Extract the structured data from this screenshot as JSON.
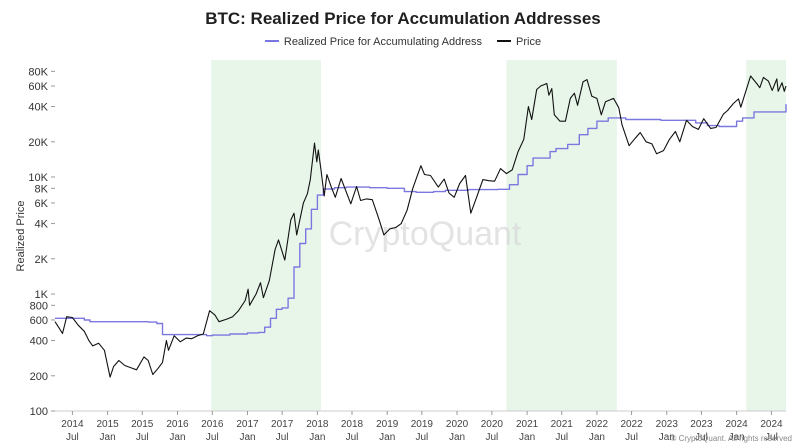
{
  "chart_data": {
    "type": "line",
    "title": "BTC: Realized Price for Accumulation Addresses",
    "ylabel": "Realized Price",
    "yscale": "log",
    "ylim": [
      100,
      100000
    ],
    "xlim": [
      "2014-04-01",
      "2024-09-15"
    ],
    "grid": false,
    "legend_position": "top-center",
    "watermark": "CryptoQuant",
    "copyright": "© CryptoQuant. All rights reserved",
    "y_ticks": [
      {
        "value": 100,
        "label": "100"
      },
      {
        "value": 200,
        "label": "200"
      },
      {
        "value": 400,
        "label": "400"
      },
      {
        "value": 600,
        "label": "600"
      },
      {
        "value": 800,
        "label": "800"
      },
      {
        "value": 1000,
        "label": "1K"
      },
      {
        "value": 2000,
        "label": "2K"
      },
      {
        "value": 4000,
        "label": "4K"
      },
      {
        "value": 6000,
        "label": "6K"
      },
      {
        "value": 8000,
        "label": "8K"
      },
      {
        "value": 10000,
        "label": "10K"
      },
      {
        "value": 20000,
        "label": "20K"
      },
      {
        "value": 40000,
        "label": "40K"
      },
      {
        "value": 60000,
        "label": "60K"
      },
      {
        "value": 80000,
        "label": "80K"
      }
    ],
    "x_ticks": [
      {
        "date": "2014-07-01",
        "line1": "2014",
        "line2": "Jul"
      },
      {
        "date": "2015-01-01",
        "line1": "2015",
        "line2": "Jan"
      },
      {
        "date": "2015-07-01",
        "line1": "2015",
        "line2": "Jul"
      },
      {
        "date": "2016-01-01",
        "line1": "2016",
        "line2": "Jan"
      },
      {
        "date": "2016-07-01",
        "line1": "2016",
        "line2": "Jul"
      },
      {
        "date": "2017-01-01",
        "line1": "2017",
        "line2": "Jan"
      },
      {
        "date": "2017-07-01",
        "line1": "2017",
        "line2": "Jul"
      },
      {
        "date": "2018-01-01",
        "line1": "2018",
        "line2": "Jan"
      },
      {
        "date": "2018-07-01",
        "line1": "2018",
        "line2": "Jul"
      },
      {
        "date": "2019-01-01",
        "line1": "2019",
        "line2": "Jan"
      },
      {
        "date": "2019-07-01",
        "line1": "2019",
        "line2": "Jul"
      },
      {
        "date": "2020-01-01",
        "line1": "2020",
        "line2": "Jan"
      },
      {
        "date": "2020-07-01",
        "line1": "2020",
        "line2": "Jul"
      },
      {
        "date": "2021-01-01",
        "line1": "2021",
        "line2": "Jan"
      },
      {
        "date": "2021-07-01",
        "line1": "2021",
        "line2": "Jul"
      },
      {
        "date": "2022-01-01",
        "line1": "2022",
        "line2": "Jan"
      },
      {
        "date": "2022-07-01",
        "line1": "2022",
        "line2": "Jul"
      },
      {
        "date": "2023-01-01",
        "line1": "2023",
        "line2": "Jan"
      },
      {
        "date": "2023-07-01",
        "line1": "2023",
        "line2": "Jul"
      },
      {
        "date": "2024-01-01",
        "line1": "2024",
        "line2": "Jan"
      },
      {
        "date": "2024-07-01",
        "line1": "2024",
        "line2": "Jul"
      }
    ],
    "shaded_regions": [
      {
        "start": "2016-06-25",
        "end": "2018-01-20"
      },
      {
        "start": "2020-09-15",
        "end": "2022-04-15"
      },
      {
        "start": "2024-02-20",
        "end": "2024-09-15"
      }
    ],
    "series": [
      {
        "name": "Realized Price for Accumulating Address",
        "color": "#7a78e0",
        "style": "step",
        "points": [
          [
            "2014-04-01",
            620
          ],
          [
            "2014-09-01",
            600
          ],
          [
            "2014-10-01",
            580
          ],
          [
            "2015-08-01",
            575
          ],
          [
            "2015-09-15",
            560
          ],
          [
            "2015-10-15",
            450
          ],
          [
            "2016-06-01",
            440
          ],
          [
            "2016-07-01",
            445
          ],
          [
            "2016-10-01",
            455
          ],
          [
            "2017-01-01",
            465
          ],
          [
            "2017-03-01",
            470
          ],
          [
            "2017-04-01",
            520
          ],
          [
            "2017-05-01",
            620
          ],
          [
            "2017-06-01",
            740
          ],
          [
            "2017-07-01",
            760
          ],
          [
            "2017-08-01",
            920
          ],
          [
            "2017-09-01",
            1700
          ],
          [
            "2017-10-01",
            2700
          ],
          [
            "2017-11-01",
            3600
          ],
          [
            "2017-12-01",
            5300
          ],
          [
            "2018-01-01",
            7000
          ],
          [
            "2018-02-01",
            7900
          ],
          [
            "2018-04-01",
            8100
          ],
          [
            "2018-06-01",
            8200
          ],
          [
            "2018-10-01",
            8100
          ],
          [
            "2019-01-01",
            8000
          ],
          [
            "2019-04-01",
            7500
          ],
          [
            "2019-06-01",
            7400
          ],
          [
            "2019-09-01",
            7500
          ],
          [
            "2019-11-01",
            7700
          ],
          [
            "2020-03-01",
            7800
          ],
          [
            "2020-08-01",
            7850
          ],
          [
            "2020-10-01",
            8600
          ],
          [
            "2020-11-15",
            10500
          ],
          [
            "2021-01-01",
            12500
          ],
          [
            "2021-02-01",
            14500
          ],
          [
            "2021-05-01",
            16500
          ],
          [
            "2021-06-01",
            17500
          ],
          [
            "2021-08-01",
            19000
          ],
          [
            "2021-10-01",
            23000
          ],
          [
            "2021-11-15",
            26000
          ],
          [
            "2022-01-01",
            30000
          ],
          [
            "2022-03-01",
            32000
          ],
          [
            "2022-06-01",
            31000
          ],
          [
            "2022-12-01",
            30500
          ],
          [
            "2023-06-01",
            29000
          ],
          [
            "2023-08-01",
            27500
          ],
          [
            "2023-10-01",
            27000
          ],
          [
            "2024-01-01",
            30000
          ],
          [
            "2024-02-01",
            32000
          ],
          [
            "2024-04-01",
            36000
          ],
          [
            "2024-09-15",
            42000
          ]
        ]
      },
      {
        "name": "Price",
        "color": "#111111",
        "style": "line",
        "points": [
          [
            "2014-04-01",
            580
          ],
          [
            "2014-04-20",
            520
          ],
          [
            "2014-05-10",
            460
          ],
          [
            "2014-06-01",
            640
          ],
          [
            "2014-07-01",
            630
          ],
          [
            "2014-08-01",
            540
          ],
          [
            "2014-09-01",
            480
          ],
          [
            "2014-09-25",
            400
          ],
          [
            "2014-10-15",
            360
          ],
          [
            "2014-11-15",
            380
          ],
          [
            "2014-12-15",
            330
          ],
          [
            "2015-01-14",
            195
          ],
          [
            "2015-02-01",
            240
          ],
          [
            "2015-03-01",
            270
          ],
          [
            "2015-04-01",
            245
          ],
          [
            "2015-05-01",
            235
          ],
          [
            "2015-06-01",
            225
          ],
          [
            "2015-07-10",
            290
          ],
          [
            "2015-08-01",
            270
          ],
          [
            "2015-08-25",
            205
          ],
          [
            "2015-09-20",
            230
          ],
          [
            "2015-10-15",
            260
          ],
          [
            "2015-11-04",
            400
          ],
          [
            "2015-11-15",
            330
          ],
          [
            "2015-12-15",
            440
          ],
          [
            "2016-01-15",
            390
          ],
          [
            "2016-02-15",
            420
          ],
          [
            "2016-03-15",
            415
          ],
          [
            "2016-04-15",
            440
          ],
          [
            "2016-05-15",
            455
          ],
          [
            "2016-06-17",
            720
          ],
          [
            "2016-07-15",
            660
          ],
          [
            "2016-08-05",
            580
          ],
          [
            "2016-09-15",
            610
          ],
          [
            "2016-10-15",
            640
          ],
          [
            "2016-11-15",
            720
          ],
          [
            "2016-12-20",
            880
          ],
          [
            "2017-01-04",
            1100
          ],
          [
            "2017-01-12",
            800
          ],
          [
            "2017-02-15",
            1000
          ],
          [
            "2017-03-10",
            1250
          ],
          [
            "2017-03-25",
            930
          ],
          [
            "2017-04-25",
            1300
          ],
          [
            "2017-05-25",
            2400
          ],
          [
            "2017-06-12",
            2900
          ],
          [
            "2017-07-15",
            1950
          ],
          [
            "2017-08-15",
            4300
          ],
          [
            "2017-09-01",
            4900
          ],
          [
            "2017-09-15",
            3200
          ],
          [
            "2017-10-20",
            6000
          ],
          [
            "2017-11-10",
            7200
          ],
          [
            "2017-11-25",
            9500
          ],
          [
            "2017-12-17",
            19500
          ],
          [
            "2017-12-29",
            13500
          ],
          [
            "2018-01-06",
            17000
          ],
          [
            "2018-01-20",
            11500
          ],
          [
            "2018-02-06",
            6900
          ],
          [
            "2018-02-20",
            10500
          ],
          [
            "2018-03-15",
            8200
          ],
          [
            "2018-04-05",
            6700
          ],
          [
            "2018-05-05",
            9700
          ],
          [
            "2018-06-25",
            5900
          ],
          [
            "2018-07-25",
            8300
          ],
          [
            "2018-08-15",
            6300
          ],
          [
            "2018-09-15",
            6500
          ],
          [
            "2018-10-15",
            6400
          ],
          [
            "2018-11-20",
            4300
          ],
          [
            "2018-12-15",
            3200
          ],
          [
            "2019-01-15",
            3600
          ],
          [
            "2019-02-15",
            3700
          ],
          [
            "2019-03-15",
            4000
          ],
          [
            "2019-04-15",
            5200
          ],
          [
            "2019-05-15",
            8000
          ],
          [
            "2019-06-26",
            12500
          ],
          [
            "2019-07-15",
            10500
          ],
          [
            "2019-08-15",
            10300
          ],
          [
            "2019-09-25",
            8200
          ],
          [
            "2019-10-26",
            9600
          ],
          [
            "2019-11-20",
            7300
          ],
          [
            "2019-12-17",
            6700
          ],
          [
            "2020-01-15",
            8800
          ],
          [
            "2020-02-14",
            10300
          ],
          [
            "2020-03-13",
            4900
          ],
          [
            "2020-04-15",
            6900
          ],
          [
            "2020-05-15",
            9500
          ],
          [
            "2020-06-15",
            9300
          ],
          [
            "2020-07-15",
            9200
          ],
          [
            "2020-08-15",
            11800
          ],
          [
            "2020-09-15",
            10700
          ],
          [
            "2020-10-15",
            11500
          ],
          [
            "2020-11-15",
            16500
          ],
          [
            "2020-12-15",
            21000
          ],
          [
            "2021-01-08",
            40000
          ],
          [
            "2021-01-25",
            31000
          ],
          [
            "2021-02-20",
            56000
          ],
          [
            "2021-03-13",
            60000
          ],
          [
            "2021-04-14",
            63000
          ],
          [
            "2021-04-25",
            50000
          ],
          [
            "2021-05-10",
            57000
          ],
          [
            "2021-05-23",
            34000
          ],
          [
            "2021-06-22",
            30000
          ],
          [
            "2021-07-20",
            30000
          ],
          [
            "2021-08-15",
            47000
          ],
          [
            "2021-09-05",
            52000
          ],
          [
            "2021-09-22",
            41000
          ],
          [
            "2021-10-20",
            65000
          ],
          [
            "2021-11-10",
            68000
          ],
          [
            "2021-12-05",
            49000
          ],
          [
            "2022-01-01",
            47000
          ],
          [
            "2022-01-24",
            34000
          ],
          [
            "2022-02-15",
            44000
          ],
          [
            "2022-03-29",
            47000
          ],
          [
            "2022-04-25",
            39000
          ],
          [
            "2022-05-12",
            28000
          ],
          [
            "2022-06-18",
            18500
          ],
          [
            "2022-07-15",
            21000
          ],
          [
            "2022-08-15",
            24000
          ],
          [
            "2022-09-15",
            20000
          ],
          [
            "2022-10-15",
            19200
          ],
          [
            "2022-11-09",
            15800
          ],
          [
            "2022-12-15",
            16800
          ],
          [
            "2023-01-15",
            21000
          ],
          [
            "2023-02-15",
            24500
          ],
          [
            "2023-03-10",
            20000
          ],
          [
            "2023-04-14",
            30500
          ],
          [
            "2023-05-15",
            27000
          ],
          [
            "2023-06-15",
            25500
          ],
          [
            "2023-07-13",
            31500
          ],
          [
            "2023-08-18",
            26000
          ],
          [
            "2023-09-15",
            26500
          ],
          [
            "2023-10-24",
            34500
          ],
          [
            "2023-11-15",
            37000
          ],
          [
            "2023-12-15",
            42500
          ],
          [
            "2024-01-11",
            46500
          ],
          [
            "2024-01-23",
            39500
          ],
          [
            "2024-02-15",
            52000
          ],
          [
            "2024-03-14",
            73000
          ],
          [
            "2024-04-15",
            63000
          ],
          [
            "2024-05-01",
            58000
          ],
          [
            "2024-05-20",
            71000
          ],
          [
            "2024-06-15",
            66000
          ],
          [
            "2024-07-05",
            55000
          ],
          [
            "2024-07-29",
            69000
          ],
          [
            "2024-08-05",
            54000
          ],
          [
            "2024-08-25",
            64000
          ],
          [
            "2024-09-06",
            54000
          ],
          [
            "2024-09-15",
            60000
          ]
        ]
      }
    ]
  }
}
